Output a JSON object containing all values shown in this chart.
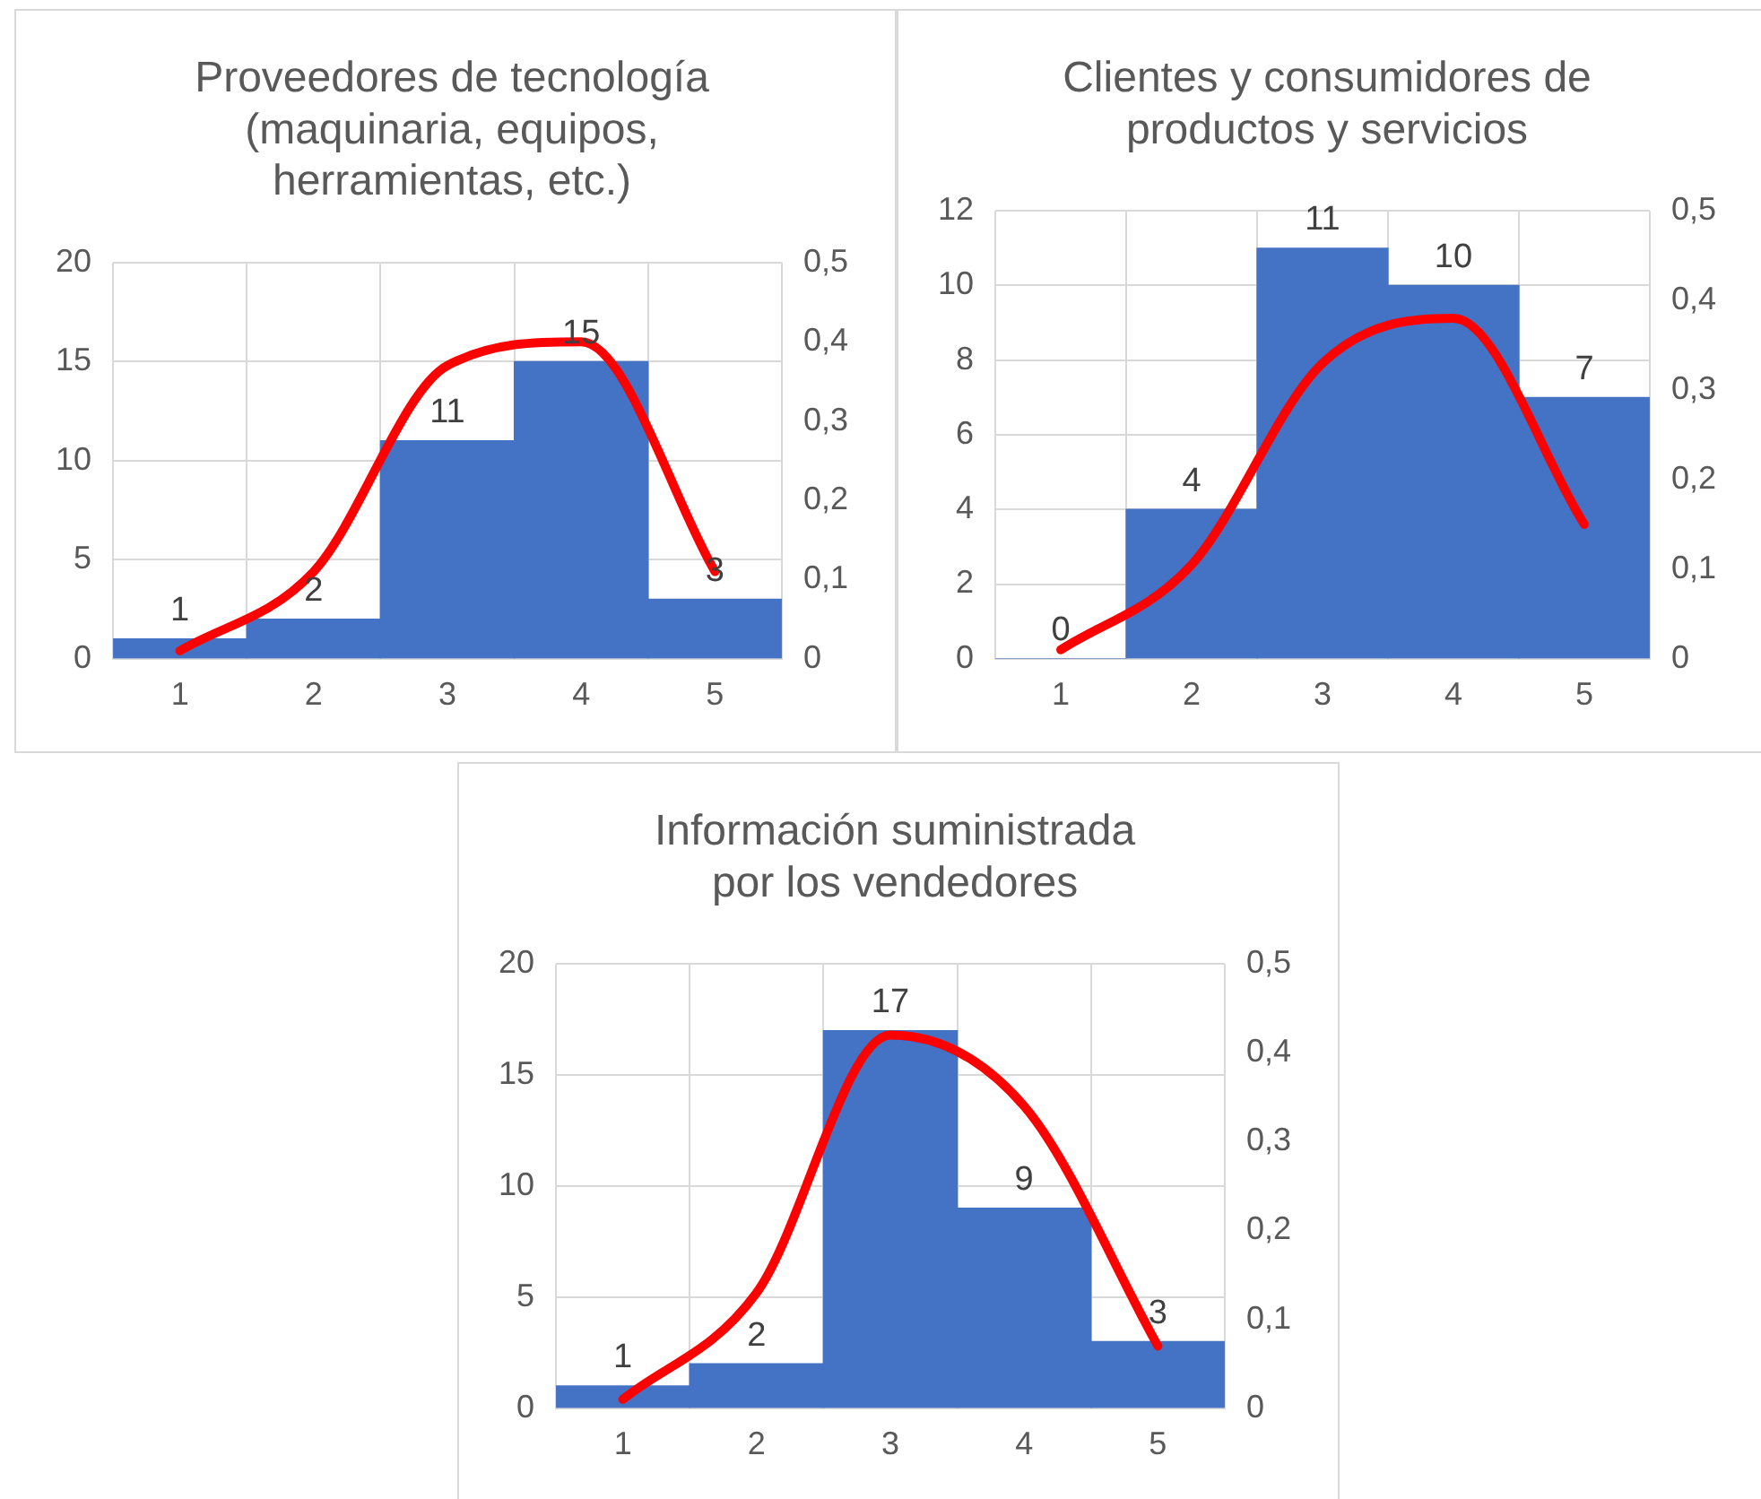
{
  "chart_data": [
    {
      "type": "bar",
      "title": "Proveedores de tecnología\n(maquinaria, equipos,\nherramientas, etc.)",
      "categories": [
        "1",
        "2",
        "3",
        "4",
        "5"
      ],
      "grid": true,
      "series": [
        {
          "type": "bar",
          "color": "#4472c4",
          "values": [
            1,
            2,
            11,
            15,
            3
          ],
          "value_labels": [
            "1",
            "2",
            "11",
            "15",
            "3"
          ]
        },
        {
          "type": "line",
          "axis": "y2",
          "color": "#ff0000",
          "values": [
            0.01,
            0.11,
            0.37,
            0.4,
            0.11
          ]
        }
      ],
      "ylim": [
        0,
        20
      ],
      "yticks": [
        0,
        5,
        10,
        15,
        20
      ],
      "y2lim": [
        0,
        0.5
      ],
      "y2ticks": [
        {
          "value": 0,
          "label": "0"
        },
        {
          "value": 0.1,
          "label": "0,1"
        },
        {
          "value": 0.2,
          "label": "0,2"
        },
        {
          "value": 0.3,
          "label": "0,3"
        },
        {
          "value": 0.4,
          "label": "0,4"
        },
        {
          "value": 0.5,
          "label": "0,5"
        }
      ]
    },
    {
      "type": "bar",
      "title": "Clientes y consumidores de\nproductos y servicios",
      "categories": [
        "1",
        "2",
        "3",
        "4",
        "5"
      ],
      "grid": true,
      "series": [
        {
          "type": "bar",
          "color": "#4472c4",
          "values": [
            0,
            4,
            11,
            10,
            7
          ],
          "value_labels": [
            "0",
            "4",
            "11",
            "10",
            "7"
          ]
        },
        {
          "type": "line",
          "axis": "y2",
          "color": "#ff0000",
          "values": [
            0.01,
            0.105,
            0.33,
            0.38,
            0.15
          ]
        }
      ],
      "ylim": [
        0,
        12
      ],
      "yticks": [
        0,
        2,
        4,
        6,
        8,
        10,
        12
      ],
      "y2lim": [
        0,
        0.5
      ],
      "y2ticks": [
        {
          "value": 0,
          "label": "0"
        },
        {
          "value": 0.1,
          "label": "0,1"
        },
        {
          "value": 0.2,
          "label": "0,2"
        },
        {
          "value": 0.3,
          "label": "0,3"
        },
        {
          "value": 0.4,
          "label": "0,4"
        },
        {
          "value": 0.5,
          "label": "0,5"
        }
      ]
    },
    {
      "type": "bar",
      "title": "Información suministrada\npor los vendedores",
      "categories": [
        "1",
        "2",
        "3",
        "4",
        "5"
      ],
      "grid": true,
      "series": [
        {
          "type": "bar",
          "color": "#4472c4",
          "values": [
            1,
            2,
            17,
            9,
            3
          ],
          "value_labels": [
            "1",
            "2",
            "17",
            "9",
            "3"
          ]
        },
        {
          "type": "line",
          "axis": "y2",
          "color": "#ff0000",
          "values": [
            0.01,
            0.13,
            0.42,
            0.34,
            0.07
          ]
        }
      ],
      "ylim": [
        0,
        20
      ],
      "yticks": [
        0,
        5,
        10,
        15,
        20
      ],
      "y2lim": [
        0,
        0.5
      ],
      "y2ticks": [
        {
          "value": 0,
          "label": "0"
        },
        {
          "value": 0.1,
          "label": "0,1"
        },
        {
          "value": 0.2,
          "label": "0,2"
        },
        {
          "value": 0.3,
          "label": "0,3"
        },
        {
          "value": 0.4,
          "label": "0,4"
        },
        {
          "value": 0.5,
          "label": "0,5"
        }
      ]
    }
  ]
}
